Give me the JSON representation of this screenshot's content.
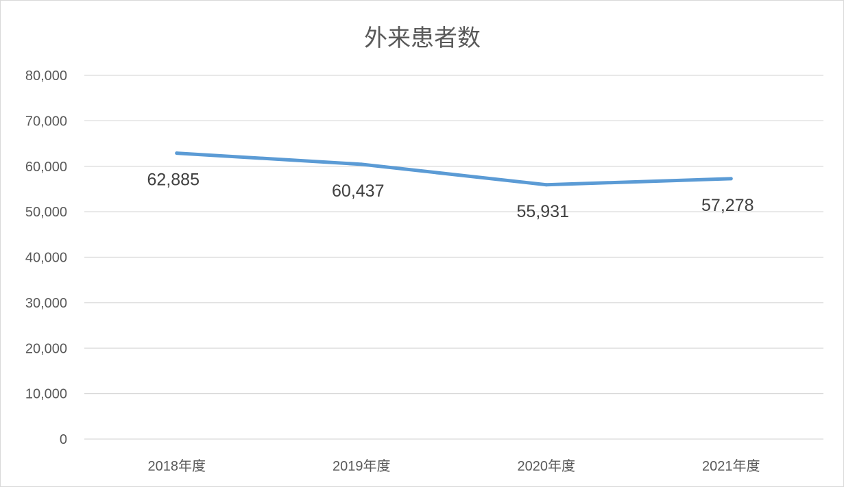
{
  "chart_data": {
    "type": "line",
    "title": "外来患者数",
    "categories": [
      "2018年度",
      "2019年度",
      "2020年度",
      "2021年度"
    ],
    "series": [
      {
        "values": [
          62885,
          60437,
          55931,
          57278
        ],
        "data_labels": [
          "62,885",
          "60,437",
          "55,931",
          "57,278"
        ],
        "color": "#5b9bd5"
      }
    ],
    "ylim": [
      0,
      80000
    ],
    "yticks": [
      0,
      10000,
      20000,
      30000,
      40000,
      50000,
      60000,
      70000,
      80000
    ],
    "ytick_labels": [
      "0",
      "10,000",
      "20,000",
      "30,000",
      "40,000",
      "50,000",
      "60,000",
      "70,000",
      "80,000"
    ],
    "grid": true,
    "legend": "none"
  }
}
